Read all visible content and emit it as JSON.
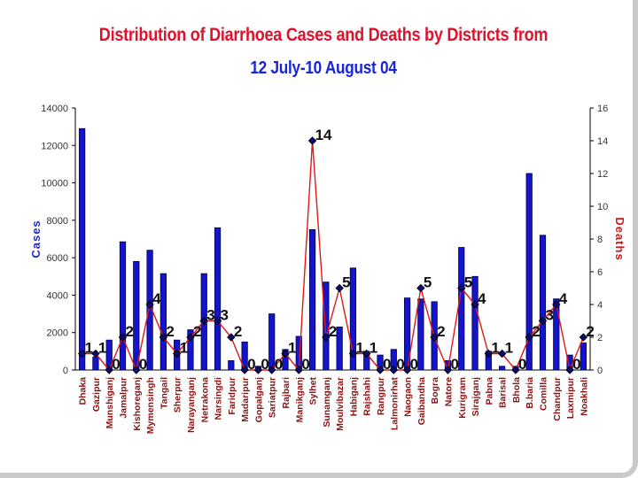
{
  "chart_data": {
    "type": "bar+line",
    "title": "Distribution of Diarrhoea Cases and Deaths by Districts from",
    "subtitle": "12 July-10 August 04",
    "ylabel": "Cases",
    "y2label": "Deaths",
    "ylim": [
      0,
      14000
    ],
    "y2lim": [
      0,
      16
    ],
    "y_ticks": [
      0,
      2000,
      4000,
      6000,
      8000,
      10000,
      12000,
      14000
    ],
    "y2_ticks": [
      0,
      2,
      4,
      6,
      8,
      10,
      12,
      14,
      16
    ],
    "categories": [
      "Dhaka",
      "Gazipur",
      "Munshiganj",
      "Jamalpur",
      "Kishoreganj",
      "Mymensingh",
      "Tangail",
      "Sherpur",
      "Narayanganj",
      "Netrakona",
      "Narsingdi",
      "Faridpur",
      "Madaripur",
      "Gopalganj",
      "Sariatpur",
      "Rajbari",
      "Manikganj",
      "Sylhet",
      "Sunamganj",
      "Moulvibazar",
      "Habiganj",
      "Rajshahi",
      "Rangpur",
      "Lalmonirhat",
      "Naogaon",
      "Gaibandha",
      "Bogra",
      "Natore",
      "Kurigram",
      "Sirajganj",
      "Pabna",
      "Barisal",
      "Bhola",
      "B.baria",
      "Comilla",
      "Chandpur",
      "Laxmipur",
      "Noakhali"
    ],
    "series": [
      {
        "name": "Cases",
        "color": "#1414c8",
        "values": [
          12900,
          700,
          1600,
          6850,
          5800,
          6400,
          5150,
          1600,
          2150,
          5150,
          7600,
          500,
          1500,
          200,
          3000,
          1100,
          1800,
          7500,
          4700,
          2300,
          5450,
          1000,
          800,
          1100,
          3850,
          3800,
          3650,
          500,
          6550,
          5000,
          1000,
          200,
          200,
          10500,
          7200,
          3800,
          800,
          1450
        ]
      },
      {
        "name": "Deaths",
        "color": "#e01818",
        "values": [
          1,
          1,
          0,
          2,
          0,
          4,
          2,
          1,
          2,
          3,
          3,
          2,
          0,
          0,
          0,
          1,
          0,
          14,
          2,
          5,
          1,
          1,
          0,
          0,
          0,
          5,
          2,
          0,
          5,
          4,
          1,
          1,
          0,
          2,
          3,
          4,
          0,
          2
        ]
      }
    ],
    "deaths_labels": [
      "1",
      "1",
      "0",
      "2",
      "0",
      "4",
      "2",
      "1",
      "2",
      "3",
      "3",
      "2",
      "0",
      "0",
      "0",
      "1",
      "0",
      "14",
      "2",
      "5",
      "1",
      "1",
      "0",
      "0",
      "0",
      "5",
      "2",
      "0",
      "5",
      "4",
      "1",
      "1",
      "0",
      "2",
      "3",
      "4",
      "0",
      "2"
    ]
  }
}
